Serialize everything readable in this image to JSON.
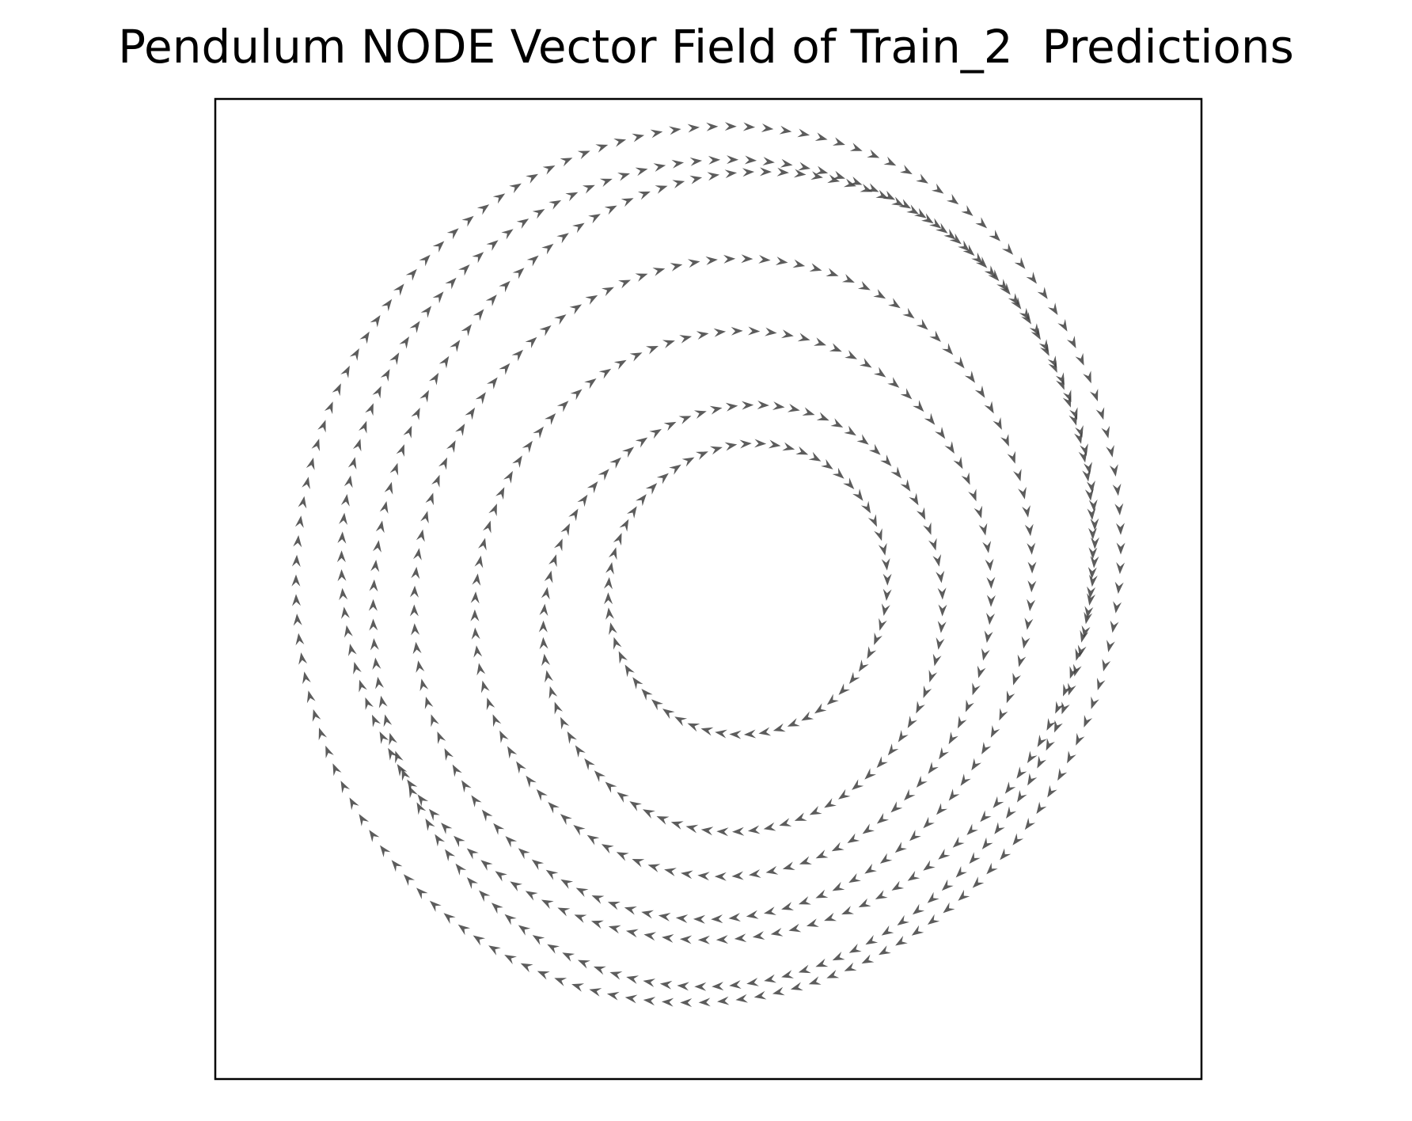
{
  "chart_data": {
    "type": "quiver",
    "title": "Pendulum NODE Vector Field of Train_2  Predictions",
    "xlabel": "",
    "ylabel": "",
    "xticks": [],
    "yticks": [],
    "grid": false,
    "legend": "none",
    "xlim": [
      -1,
      1
    ],
    "ylim": [
      -1,
      1
    ],
    "arrow_color": "#404040",
    "frame_color": "#000000",
    "trajectories": [
      {
        "cx": 0.0,
        "cy": 0.05,
        "rx": 0.83,
        "ry": 0.9,
        "tilt": -0.3,
        "points": 140
      },
      {
        "cx": 0.02,
        "cy": 0.08,
        "rx": 0.76,
        "ry": 0.8,
        "tilt": -0.32,
        "points": 130
      },
      {
        "cx": 0.05,
        "cy": 0.02,
        "rx": 0.72,
        "ry": 0.84,
        "tilt": -0.28,
        "points": 130
      },
      {
        "cx": 0.03,
        "cy": 0.0,
        "rx": 0.62,
        "ry": 0.68,
        "tilt": -0.33,
        "points": 110
      },
      {
        "cx": 0.05,
        "cy": -0.03,
        "rx": 0.52,
        "ry": 0.56,
        "tilt": -0.3,
        "points": 95
      },
      {
        "cx": 0.07,
        "cy": -0.06,
        "rx": 0.4,
        "ry": 0.44,
        "tilt": -0.35,
        "points": 80
      },
      {
        "cx": 0.08,
        "cy": 0.0,
        "rx": 0.28,
        "ry": 0.3,
        "tilt": -0.4,
        "points": 60
      }
    ]
  }
}
